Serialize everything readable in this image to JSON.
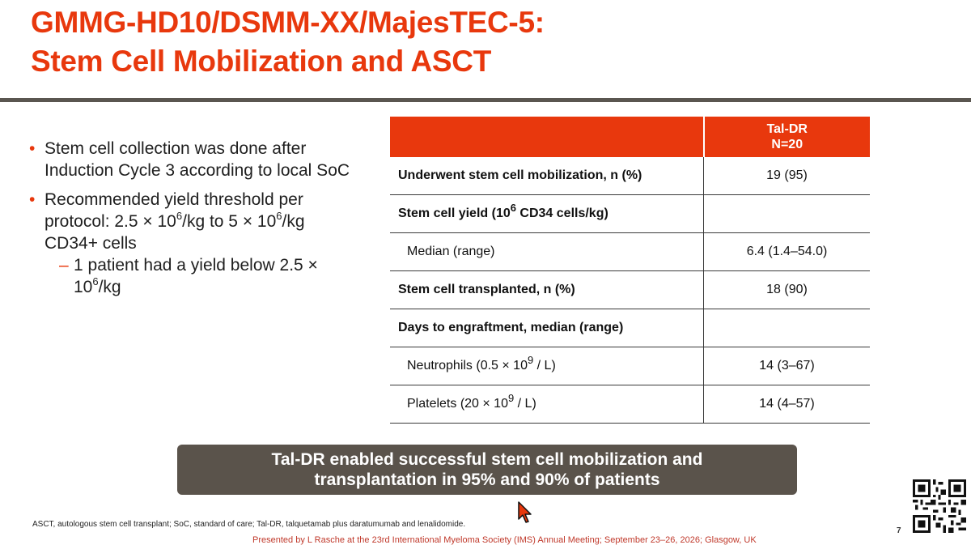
{
  "slide": {
    "title_line1": "GMMG-HD10/DSMM-XX/MajesTEC-5:",
    "title_line2": "Stem Cell Mobilization and ASCT",
    "page_number": "7",
    "accent_color": "#e8380d",
    "rule_color": "#5a5650"
  },
  "bullets": {
    "b1": "Stem cell collection was done after Induction Cycle 3 according to local SoC",
    "b2_a": "Recommended yield threshold per protocol: 2.5 × 10",
    "b2_sup1": "6",
    "b2_b": "/kg to 5 × 10",
    "b2_sup2": "6",
    "b2_c": "/kg CD34+ cells",
    "sub_a": "1 patient had a yield below 2.5 × 10",
    "sub_sup": "6",
    "sub_b": "/kg"
  },
  "table": {
    "header_line1": "Tal-DR",
    "header_line2": "N=20",
    "rows": [
      {
        "label": "Underwent stem cell mobilization, n (%)",
        "value": "19 (95)"
      },
      {
        "label_a": "Stem cell yield (10",
        "label_sup": "6",
        "label_b": " CD34 cells/kg)",
        "value": ""
      },
      {
        "label": "Median (range)",
        "value": "6.4 (1.4–54.0)"
      },
      {
        "label": "Stem cell transplanted, n (%)",
        "value": "18 (90)"
      },
      {
        "label": "Days to engraftment, median (range)",
        "value": ""
      },
      {
        "label_a": "Neutrophils (0.5 × 10",
        "label_sup": "9",
        "label_b": " / L)",
        "value": "14 (3–67)"
      },
      {
        "label_a": "Platelets (20 × 10",
        "label_sup": "9",
        "label_b": " / L)",
        "value": "14 (4–57)"
      }
    ]
  },
  "banner": {
    "line1": "Tal-DR enabled successful stem cell mobilization and",
    "line2": "transplantation in 95% and 90% of patients"
  },
  "footnote": "ASCT, autologous stem cell transplant; SoC, standard of care; Tal-DR, talquetamab plus daratumumab and lenalidomide.",
  "presented_by": "Presented by L Rasche at the 23rd International Myeloma Society (IMS) Annual Meeting; September 23–26, 2026; Glasgow, UK"
}
